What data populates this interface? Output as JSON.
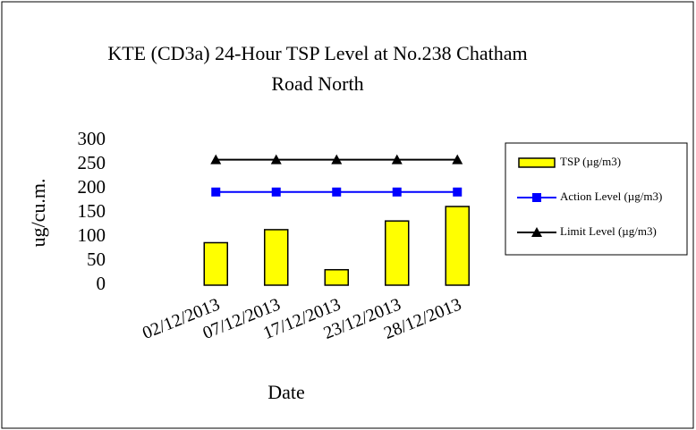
{
  "chart_data": {
    "type": "bar",
    "title": "KTE  (CD3a) 24-Hour TSP Level at No.238 Chatham",
    "title_line2": "Road North",
    "x_label": "Date",
    "y_label": "ug/cu.m.",
    "categories": [
      null,
      "02/12/2013",
      "07/12/2013",
      "17/12/2013",
      "23/12/2013",
      "28/12/2013"
    ],
    "series": [
      {
        "name": "TSP (µg/m3)",
        "type": "bar",
        "color": "#ffff00",
        "values": [
          null,
          88,
          115,
          32,
          133,
          163
        ]
      },
      {
        "name": "Action Level (µg/m3)",
        "type": "line",
        "marker": "square",
        "color": "#0000ff",
        "values": [
          null,
          193,
          193,
          193,
          193,
          193
        ]
      },
      {
        "name": "Limit Level (µg/m3)",
        "type": "line",
        "marker": "triangle",
        "color": "#000000",
        "values": [
          null,
          260,
          260,
          260,
          260,
          260
        ]
      }
    ],
    "ylim": [
      0,
      300
    ],
    "yticks": [
      0,
      50,
      100,
      150,
      200,
      250,
      300
    ],
    "legend": "right"
  }
}
